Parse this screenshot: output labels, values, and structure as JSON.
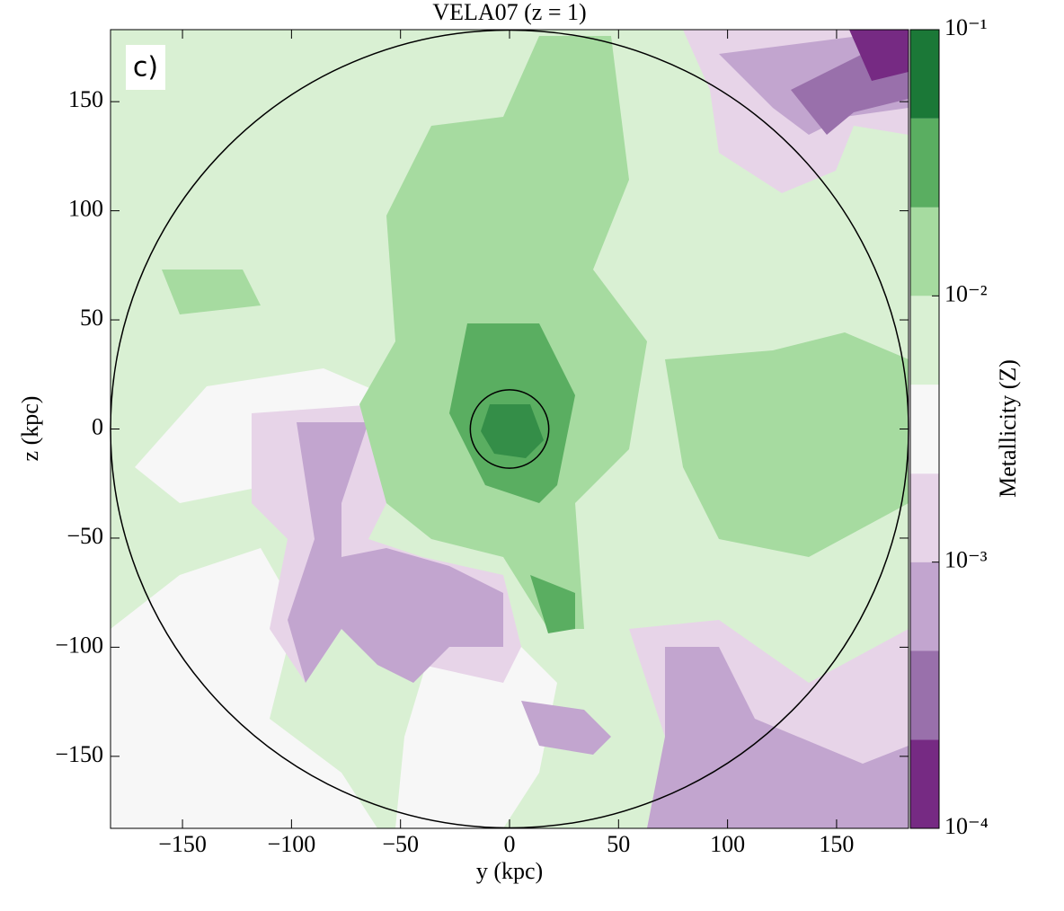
{
  "chart_data": {
    "type": "heatmap",
    "title": "VELA07 (z = 1)",
    "panel_label": "c)",
    "xlabel": "y (kpc)",
    "ylabel": "z (kpc)",
    "xlim": [
      -183,
      183
    ],
    "ylim": [
      -183,
      183
    ],
    "xticks": [
      {
        "value": -150,
        "label": "−150"
      },
      {
        "value": -100,
        "label": "−100"
      },
      {
        "value": -50,
        "label": "−50"
      },
      0,
      50,
      100,
      150
    ],
    "yticks": [
      {
        "value": -150,
        "label": "−150"
      },
      {
        "value": -100,
        "label": "−100"
      },
      {
        "value": -50,
        "label": "−50"
      },
      0,
      50,
      100,
      150
    ],
    "circles": [
      {
        "radius": 183
      },
      {
        "radius": 18
      }
    ],
    "colorbar": {
      "label": "Metallicity    (Z)",
      "log": true,
      "lim": [
        0.0001,
        0.1
      ],
      "ticks": [
        {
          "value": 0.0001,
          "label": "10⁻⁴"
        },
        {
          "value": 0.001,
          "label": "10⁻³"
        },
        {
          "value": 0.01,
          "label": "10⁻²"
        },
        {
          "value": 0.1,
          "label": "10⁻¹"
        }
      ],
      "levels": [
        0.0001,
        0.000215,
        0.000464,
        0.001,
        0.00215,
        0.00464,
        0.01,
        0.0215,
        0.0464,
        0.1
      ],
      "colors": [
        "#762a83",
        "#9970ab",
        "#c2a5cf",
        "#e7d4e8",
        "#f7f7f7",
        "#d9f0d3",
        "#a6dba0",
        "#5aae61",
        "#1b7837"
      ]
    }
  }
}
